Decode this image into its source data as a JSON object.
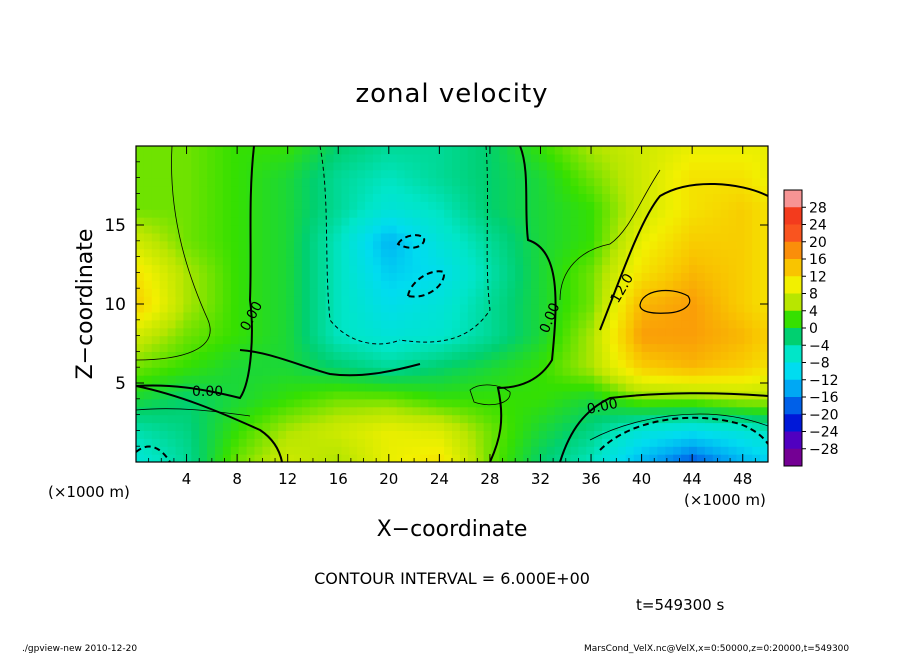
{
  "chart_data": {
    "type": "heatmap",
    "title": "zonal velocity",
    "xlabel": "X−coordinate",
    "ylabel": "Z−coordinate",
    "x_unit": "(×1000 m)",
    "y_unit": "(×1000 m)",
    "x_ticks": [
      4,
      8,
      12,
      16,
      20,
      24,
      28,
      32,
      36,
      40,
      44,
      48
    ],
    "y_ticks": [
      5,
      10,
      15
    ],
    "xlim": [
      0,
      50
    ],
    "ylim": [
      0,
      20
    ],
    "colorbar": {
      "labels": [
        "28",
        "24",
        "20",
        "16",
        "12",
        "8",
        "4",
        "0",
        "−4",
        "−8",
        "−12",
        "−16",
        "−20",
        "−24",
        "−28"
      ],
      "colors": [
        "#f79494",
        "#f33b1d",
        "#f9541f",
        "#fa8e0a",
        "#f9c400",
        "#f2f000",
        "#b8e600",
        "#36e000",
        "#00d070",
        "#00e6c8",
        "#00dcf0",
        "#00a8f4",
        "#0060e8",
        "#0018d8",
        "#5000c0",
        "#740094"
      ]
    },
    "contour_labels": [
      "0.00",
      "0.00",
      "0.00",
      "0.00",
      "12.0"
    ],
    "contour_interval_text": "CONTOUR INTERVAL = 6.000E+00",
    "time_text": "t=549300 s",
    "footer_left": "./gpview-new  2010-12-20",
    "footer_right": "MarsCond_VelX.nc@VelX,x=0:50000,z=0:20000,t=549300",
    "field_grid": {
      "x": [
        0,
        4,
        8,
        12,
        16,
        20,
        24,
        28,
        32,
        36,
        40,
        44,
        48,
        50
      ],
      "z": [
        0,
        2,
        4,
        6,
        8,
        10,
        12,
        14,
        16,
        18,
        20
      ],
      "values": [
        [
          -8,
          -4,
          4,
          8,
          6,
          10,
          12,
          4,
          -2,
          -6,
          -14,
          -20,
          -14,
          -12
        ],
        [
          -5,
          -3,
          2,
          6,
          8,
          10,
          9,
          4,
          0,
          -3,
          -8,
          -10,
          -8,
          -6
        ],
        [
          0,
          -2,
          0,
          2,
          4,
          4,
          2,
          2,
          2,
          0,
          4,
          4,
          6,
          6
        ],
        [
          4,
          2,
          0,
          0,
          -2,
          -4,
          -2,
          0,
          2,
          6,
          14,
          16,
          14,
          12
        ],
        [
          8,
          4,
          2,
          0,
          -6,
          -8,
          -7,
          -4,
          0,
          6,
          18,
          18,
          16,
          14
        ],
        [
          14,
          6,
          2,
          0,
          -6,
          -10,
          -8,
          -4,
          0,
          4,
          16,
          18,
          14,
          12
        ],
        [
          12,
          6,
          2,
          0,
          -6,
          -12,
          -10,
          -5,
          0,
          4,
          12,
          16,
          14,
          12
        ],
        [
          8,
          4,
          2,
          0,
          -6,
          -14,
          -8,
          -4,
          0,
          2,
          10,
          14,
          14,
          12
        ],
        [
          4,
          4,
          2,
          0,
          -4,
          -8,
          -6,
          -2,
          0,
          2,
          8,
          12,
          14,
          12
        ],
        [
          4,
          4,
          2,
          0,
          -4,
          -6,
          -4,
          -2,
          0,
          4,
          8,
          12,
          12,
          10
        ],
        [
          4,
          4,
          2,
          2,
          -2,
          -4,
          -4,
          -2,
          2,
          6,
          8,
          10,
          10,
          10
        ]
      ]
    }
  }
}
